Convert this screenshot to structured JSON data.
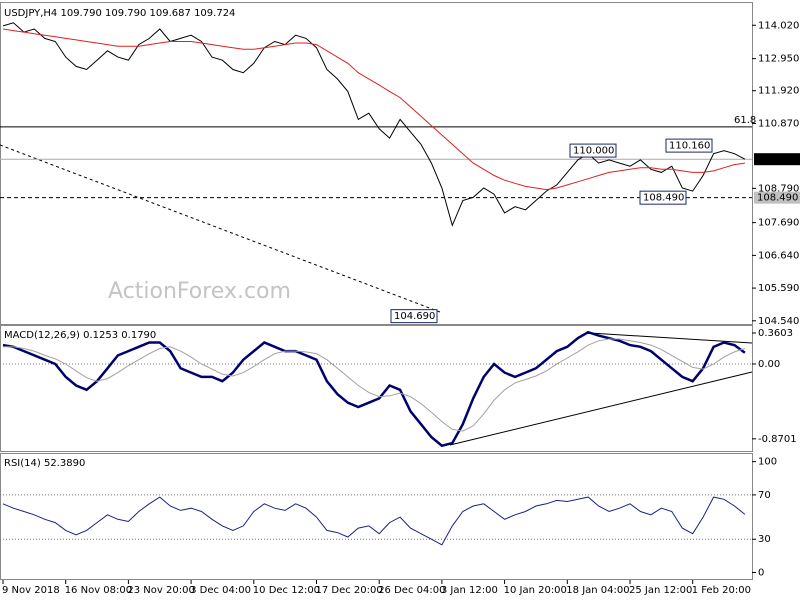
{
  "chart_data": [
    {
      "type": "line",
      "title": "USDJPY,H4  109.790 109.790 109.687 109.724",
      "watermark": "ActionForex.com",
      "ylim": [
        104.47,
        114.67
      ],
      "yticks": [
        {
          "value": 114.02,
          "label": "114.020"
        },
        {
          "value": 112.95,
          "label": "112.950"
        },
        {
          "value": 111.92,
          "label": "111.920"
        },
        {
          "value": 110.87,
          "label": "110.870"
        },
        {
          "value": 108.79,
          "label": "108.790"
        },
        {
          "value": 107.69,
          "label": "107.690"
        },
        {
          "value": 106.64,
          "label": "106.640"
        },
        {
          "value": 105.59,
          "label": "105.590"
        },
        {
          "value": 104.54,
          "label": "104.540"
        }
      ],
      "series": [
        {
          "color": "#000000",
          "values": [
            114.0,
            114.1,
            113.8,
            113.9,
            113.6,
            113.5,
            113.0,
            112.7,
            112.6,
            112.9,
            113.2,
            113.0,
            112.9,
            113.4,
            113.6,
            113.9,
            113.5,
            113.6,
            113.7,
            113.5,
            113.0,
            112.9,
            112.6,
            112.5,
            112.8,
            113.3,
            113.5,
            113.4,
            113.7,
            113.6,
            113.3,
            112.6,
            112.3,
            111.9,
            111.0,
            111.2,
            110.7,
            110.4,
            111.0,
            110.6,
            110.2,
            109.6,
            108.8,
            107.6,
            108.4,
            108.5,
            108.8,
            108.6,
            108.0,
            108.2,
            108.1,
            108.4,
            108.7,
            108.9,
            109.3,
            109.7,
            109.9,
            109.6,
            109.7,
            109.6,
            109.5,
            109.7,
            109.4,
            109.3,
            109.5,
            108.8,
            108.7,
            109.2,
            109.9,
            110.0,
            109.9,
            109.724
          ]
        },
        {
          "color": "#e02020",
          "values": [
            113.9,
            113.85,
            113.8,
            113.75,
            113.7,
            113.65,
            113.6,
            113.55,
            113.5,
            113.45,
            113.4,
            113.35,
            113.35,
            113.35,
            113.4,
            113.45,
            113.5,
            113.5,
            113.5,
            113.45,
            113.4,
            113.35,
            113.3,
            113.25,
            113.25,
            113.3,
            113.35,
            113.4,
            113.45,
            113.45,
            113.4,
            113.2,
            113.0,
            112.8,
            112.5,
            112.3,
            112.1,
            111.9,
            111.7,
            111.4,
            111.1,
            110.8,
            110.5,
            110.2,
            109.9,
            109.6,
            109.4,
            109.2,
            109.05,
            108.95,
            108.85,
            108.8,
            108.75,
            108.8,
            108.9,
            109.0,
            109.1,
            109.2,
            109.3,
            109.35,
            109.4,
            109.45,
            109.45,
            109.4,
            109.4,
            109.35,
            109.3,
            109.3,
            109.35,
            109.45,
            109.55,
            109.6
          ]
        }
      ],
      "hlines": [
        {
          "value": 110.76,
          "label": "61.8",
          "style": "solid"
        },
        {
          "value": 108.49,
          "label": "108.490",
          "style": "dashed"
        },
        {
          "value": 109.724,
          "label": "109.724",
          "style": "current"
        }
      ],
      "annotations": [
        {
          "value": 110.0,
          "label": "110.000"
        },
        {
          "value": 110.16,
          "label": "110.160"
        },
        {
          "value": 108.49,
          "label": "108.490"
        },
        {
          "value": 104.69,
          "label": "104.690"
        }
      ]
    },
    {
      "type": "line",
      "title": "MACD(12,26,9) 0.1253 0.1790",
      "ylim": [
        -1.0,
        0.43
      ],
      "yticks": [
        0.3603,
        {
          "value": 0,
          "label": "0.00"
        },
        -0.8701
      ],
      "series": [
        {
          "color": "#00006e",
          "width": 2.5,
          "values": [
            0.22,
            0.2,
            0.15,
            0.1,
            0.05,
            0.0,
            -0.15,
            -0.25,
            -0.3,
            -0.2,
            -0.05,
            0.1,
            0.15,
            0.2,
            0.25,
            0.25,
            0.15,
            -0.05,
            -0.1,
            -0.15,
            -0.15,
            -0.2,
            -0.1,
            0.05,
            0.15,
            0.25,
            0.2,
            0.15,
            0.15,
            0.1,
            0.05,
            -0.2,
            -0.35,
            -0.45,
            -0.5,
            -0.45,
            -0.4,
            -0.25,
            -0.3,
            -0.55,
            -0.7,
            -0.85,
            -0.95,
            -0.92,
            -0.7,
            -0.4,
            -0.15,
            0.0,
            -0.1,
            -0.15,
            -0.1,
            -0.05,
            0.05,
            0.15,
            0.2,
            0.3,
            0.37,
            0.33,
            0.3,
            0.27,
            0.22,
            0.2,
            0.15,
            0.05,
            -0.05,
            -0.15,
            -0.2,
            -0.05,
            0.2,
            0.25,
            0.22,
            0.13
          ]
        },
        {
          "color": "#a0a0a0",
          "width": 1,
          "values": [
            0.2,
            0.2,
            0.18,
            0.15,
            0.1,
            0.06,
            0.0,
            -0.08,
            -0.16,
            -0.2,
            -0.17,
            -0.1,
            -0.02,
            0.05,
            0.12,
            0.18,
            0.2,
            0.15,
            0.08,
            0.0,
            -0.06,
            -0.12,
            -0.14,
            -0.1,
            -0.03,
            0.05,
            0.12,
            0.15,
            0.15,
            0.14,
            0.12,
            0.05,
            -0.05,
            -0.15,
            -0.25,
            -0.33,
            -0.38,
            -0.37,
            -0.34,
            -0.38,
            -0.46,
            -0.56,
            -0.67,
            -0.76,
            -0.78,
            -0.72,
            -0.58,
            -0.42,
            -0.3,
            -0.22,
            -0.18,
            -0.14,
            -0.08,
            0.0,
            0.07,
            0.14,
            0.22,
            0.27,
            0.29,
            0.29,
            0.27,
            0.25,
            0.22,
            0.17,
            0.1,
            0.03,
            -0.04,
            -0.06,
            0.0,
            0.08,
            0.14,
            0.18
          ]
        }
      ],
      "levels": [
        0
      ]
    },
    {
      "type": "line",
      "title": "RSI(14) 52.3890",
      "ylim": [
        -5,
        106
      ],
      "yticks": [
        100,
        70,
        30,
        0
      ],
      "levels": [
        70,
        30
      ],
      "series": [
        {
          "color": "#1a237e",
          "width": 1,
          "values": [
            62,
            58,
            55,
            52,
            48,
            45,
            38,
            34,
            38,
            45,
            52,
            48,
            46,
            55,
            62,
            68,
            60,
            56,
            58,
            55,
            48,
            42,
            38,
            42,
            55,
            62,
            58,
            56,
            62,
            58,
            50,
            38,
            36,
            32,
            40,
            42,
            35,
            45,
            50,
            40,
            35,
            30,
            25,
            42,
            55,
            60,
            62,
            55,
            48,
            52,
            55,
            60,
            62,
            65,
            64,
            66,
            68,
            60,
            55,
            58,
            62,
            55,
            52,
            58,
            55,
            40,
            35,
            50,
            68,
            66,
            60,
            52.389
          ]
        }
      ],
      "categories": [
        "9 Nov 2018",
        null,
        null,
        null,
        null,
        null,
        "16 Nov 08:00",
        null,
        null,
        null,
        null,
        null,
        "23 Nov 20:00",
        null,
        null,
        null,
        null,
        null,
        "3 Dec 04:00",
        null,
        null,
        null,
        null,
        null,
        "10 Dec 12:00",
        null,
        null,
        null,
        null,
        null,
        "17 Dec 20:00",
        null,
        null,
        null,
        null,
        null,
        "26 Dec 04:00",
        null,
        null,
        null,
        null,
        null,
        "3 Jan 12:00",
        null,
        null,
        null,
        null,
        null,
        "10 Jan 20:00",
        null,
        null,
        null,
        null,
        null,
        "18 Jan 04:00",
        null,
        null,
        null,
        null,
        null,
        "25 Jan 12:00",
        null,
        null,
        null,
        null,
        null,
        "1 Feb 20:00",
        null,
        null,
        null,
        null,
        null
      ]
    }
  ]
}
